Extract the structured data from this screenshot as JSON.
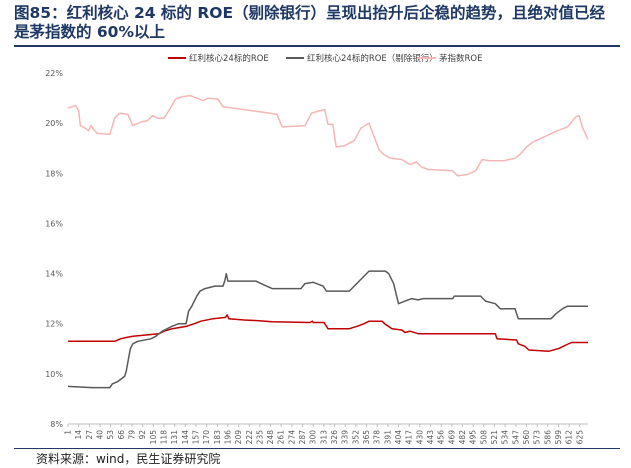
{
  "title": "图85：红利核心 24 标的 ROE（剔除银行）呈现出抬升后企稳的趋势，且绝对值已经是茅指数的 60%以上",
  "source": "资料来源：wind，民生证券研究院",
  "colors": {
    "series_red": "#c00000",
    "series_gray": "#595959",
    "series_pink": "#f4b6b6",
    "title": "#1f3864",
    "axis": "#bfbfbf",
    "tick_text": "#595959"
  },
  "chart_data": {
    "type": "line",
    "title": "",
    "xlabel": "",
    "ylabel": "",
    "ylim": [
      0.08,
      0.22
    ],
    "xlim": [
      1,
      635
    ],
    "grid": false,
    "legend_position": "top",
    "y_ticks": [
      0.08,
      0.1,
      0.12,
      0.14,
      0.16,
      0.18,
      0.2,
      0.22
    ],
    "y_tick_labels": [
      "8%",
      "10%",
      "12%",
      "14%",
      "16%",
      "18%",
      "20%",
      "22%"
    ],
    "x_ticks": [
      1,
      14,
      27,
      40,
      53,
      66,
      79,
      92,
      105,
      118,
      131,
      144,
      157,
      170,
      183,
      196,
      209,
      222,
      235,
      248,
      261,
      274,
      287,
      300,
      313,
      326,
      339,
      352,
      365,
      378,
      391,
      404,
      417,
      430,
      443,
      456,
      469,
      482,
      495,
      508,
      521,
      534,
      547,
      560,
      573,
      586,
      599,
      612,
      625
    ],
    "x_tick_labels": [
      "1",
      "14",
      "27",
      "40",
      "53",
      "66",
      "79",
      "92",
      "105",
      "118",
      "131",
      "144",
      "157",
      "170",
      "183",
      "196",
      "209",
      "222",
      "235",
      "248",
      "261",
      "274",
      "287",
      "300",
      "313",
      "326",
      "339",
      "352",
      "365",
      "378",
      "391",
      "404",
      "417",
      "430",
      "443",
      "456",
      "469",
      "482",
      "495",
      "508",
      "521",
      "534",
      "547",
      "560",
      "573",
      "586",
      "599",
      "612",
      "625"
    ],
    "series": [
      {
        "name": "红利核心24标的ROE",
        "color": "#c00000",
        "points": [
          [
            1,
            0.113
          ],
          [
            58,
            0.113
          ],
          [
            65,
            0.114
          ],
          [
            72,
            0.1145
          ],
          [
            80,
            0.115
          ],
          [
            112,
            0.116
          ],
          [
            118,
            0.117
          ],
          [
            128,
            0.118
          ],
          [
            146,
            0.119
          ],
          [
            155,
            0.12
          ],
          [
            163,
            0.121
          ],
          [
            178,
            0.122
          ],
          [
            193,
            0.1225
          ],
          [
            195,
            0.1235
          ],
          [
            197,
            0.122
          ],
          [
            216,
            0.1215
          ],
          [
            234,
            0.1212
          ],
          [
            250,
            0.1208
          ],
          [
            296,
            0.1205
          ],
          [
            299,
            0.121
          ],
          [
            300,
            0.1205
          ],
          [
            313,
            0.1205
          ],
          [
            318,
            0.118
          ],
          [
            344,
            0.118
          ],
          [
            354,
            0.119
          ],
          [
            362,
            0.12
          ],
          [
            368,
            0.121
          ],
          [
            384,
            0.121
          ],
          [
            387,
            0.12
          ],
          [
            396,
            0.118
          ],
          [
            408,
            0.1175
          ],
          [
            412,
            0.1165
          ],
          [
            418,
            0.117
          ],
          [
            428,
            0.116
          ],
          [
            482,
            0.116
          ],
          [
            522,
            0.116
          ],
          [
            524,
            0.114
          ],
          [
            548,
            0.1135
          ],
          [
            550,
            0.112
          ],
          [
            558,
            0.111
          ],
          [
            563,
            0.1095
          ],
          [
            587,
            0.109
          ],
          [
            600,
            0.1102
          ],
          [
            608,
            0.1115
          ],
          [
            615,
            0.1125
          ],
          [
            635,
            0.1125
          ]
        ]
      },
      {
        "name": "红利核心24标的ROE（剔除银行）",
        "color": "#595959",
        "points": [
          [
            1,
            0.095
          ],
          [
            30,
            0.0945
          ],
          [
            52,
            0.0945
          ],
          [
            55,
            0.096
          ],
          [
            62,
            0.097
          ],
          [
            70,
            0.099
          ],
          [
            72,
            0.101
          ],
          [
            77,
            0.11
          ],
          [
            80,
            0.112
          ],
          [
            86,
            0.113
          ],
          [
            102,
            0.114
          ],
          [
            108,
            0.115
          ],
          [
            112,
            0.116
          ],
          [
            116,
            0.117
          ],
          [
            128,
            0.119
          ],
          [
            136,
            0.12
          ],
          [
            145,
            0.12
          ],
          [
            148,
            0.125
          ],
          [
            152,
            0.127
          ],
          [
            155,
            0.129
          ],
          [
            158,
            0.131
          ],
          [
            162,
            0.133
          ],
          [
            168,
            0.134
          ],
          [
            180,
            0.135
          ],
          [
            190,
            0.135
          ],
          [
            192,
            0.137
          ],
          [
            194,
            0.14
          ],
          [
            196,
            0.137
          ],
          [
            205,
            0.137
          ],
          [
            230,
            0.137
          ],
          [
            240,
            0.1355
          ],
          [
            250,
            0.134
          ],
          [
            285,
            0.134
          ],
          [
            290,
            0.136
          ],
          [
            300,
            0.1365
          ],
          [
            312,
            0.135
          ],
          [
            316,
            0.133
          ],
          [
            344,
            0.133
          ],
          [
            350,
            0.135
          ],
          [
            362,
            0.139
          ],
          [
            368,
            0.141
          ],
          [
            388,
            0.141
          ],
          [
            392,
            0.14
          ],
          [
            398,
            0.136
          ],
          [
            404,
            0.128
          ],
          [
            412,
            0.129
          ],
          [
            420,
            0.13
          ],
          [
            428,
            0.1295
          ],
          [
            434,
            0.13
          ],
          [
            470,
            0.13
          ],
          [
            472,
            0.131
          ],
          [
            504,
            0.131
          ],
          [
            510,
            0.129
          ],
          [
            522,
            0.128
          ],
          [
            528,
            0.126
          ],
          [
            546,
            0.126
          ],
          [
            550,
            0.122
          ],
          [
            590,
            0.122
          ],
          [
            596,
            0.124
          ],
          [
            604,
            0.126
          ],
          [
            610,
            0.127
          ],
          [
            635,
            0.127
          ]
        ]
      },
      {
        "name": "茅指数ROE",
        "color": "#f4b6b6",
        "points": [
          [
            1,
            0.206
          ],
          [
            10,
            0.207
          ],
          [
            14,
            0.205
          ],
          [
            16,
            0.199
          ],
          [
            22,
            0.198
          ],
          [
            26,
            0.197
          ],
          [
            29,
            0.199
          ],
          [
            36,
            0.196
          ],
          [
            52,
            0.1955
          ],
          [
            58,
            0.202
          ],
          [
            64,
            0.204
          ],
          [
            74,
            0.2035
          ],
          [
            80,
            0.199
          ],
          [
            90,
            0.2005
          ],
          [
            98,
            0.201
          ],
          [
            104,
            0.203
          ],
          [
            110,
            0.202
          ],
          [
            118,
            0.202
          ],
          [
            126,
            0.206
          ],
          [
            132,
            0.2095
          ],
          [
            140,
            0.2105
          ],
          [
            150,
            0.211
          ],
          [
            166,
            0.209
          ],
          [
            172,
            0.21
          ],
          [
            184,
            0.2095
          ],
          [
            190,
            0.2065
          ],
          [
            214,
            0.2055
          ],
          [
            236,
            0.2045
          ],
          [
            256,
            0.2035
          ],
          [
            262,
            0.1985
          ],
          [
            290,
            0.199
          ],
          [
            298,
            0.204
          ],
          [
            314,
            0.2055
          ],
          [
            318,
            0.1995
          ],
          [
            324,
            0.1995
          ],
          [
            328,
            0.1905
          ],
          [
            338,
            0.191
          ],
          [
            350,
            0.193
          ],
          [
            358,
            0.198
          ],
          [
            368,
            0.2
          ],
          [
            380,
            0.1895
          ],
          [
            386,
            0.1875
          ],
          [
            394,
            0.186
          ],
          [
            408,
            0.1855
          ],
          [
            418,
            0.1835
          ],
          [
            426,
            0.1845
          ],
          [
            432,
            0.1825
          ],
          [
            440,
            0.1815
          ],
          [
            470,
            0.181
          ],
          [
            476,
            0.179
          ],
          [
            488,
            0.1795
          ],
          [
            498,
            0.181
          ],
          [
            506,
            0.1855
          ],
          [
            515,
            0.185
          ],
          [
            532,
            0.185
          ],
          [
            546,
            0.186
          ],
          [
            552,
            0.1875
          ],
          [
            560,
            0.1905
          ],
          [
            568,
            0.1925
          ],
          [
            578,
            0.194
          ],
          [
            588,
            0.1955
          ],
          [
            594,
            0.1965
          ],
          [
            610,
            0.1985
          ],
          [
            620,
            0.2025
          ],
          [
            624,
            0.203
          ],
          [
            628,
            0.1985
          ],
          [
            635,
            0.1935
          ]
        ]
      }
    ]
  }
}
